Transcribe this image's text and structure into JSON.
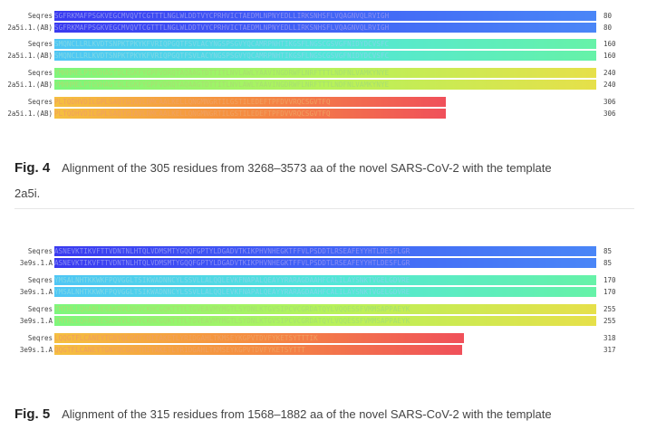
{
  "fig4": {
    "rows": [
      {
        "label": "Seqres",
        "seq": "SGFRKMAFPSGKVEGCMVQVTCGTTTLNGLWLDDTVYCPRHVICTAEDMLNPNYEDLLIRKSNHSFLVQAGNVQLRVIGH",
        "num": "80",
        "gradient": "linear-gradient(90deg,#3a3af0 0%,#3f5cf5 40%,#4a86f7 100%)",
        "color": "#8a8ff5"
      },
      {
        "label": "2a5i.1.(AB)",
        "seq": "SGFRKMAFPSGKVEGCMVQVTCGTTTLNGLWLDDTVYCPRHVICTAEDMLNPNYEDLLIRKSNHSFLVQAGNVQLRVIGH",
        "num": "80",
        "gradient": "linear-gradient(90deg,#3a3af0 0%,#3f5cf5 40%,#4a86f7 100%)",
        "color": "#8a8ff5"
      },
      {
        "label": "Seqres",
        "seq": "SMQNCLLRLKVDTSNPKTPKYKFVRIQPGQTFSVLACYNGSPSGVYQCAMRPNHTIKGSFLNGSCGSVGFNIDYDCVSFC",
        "num": "160",
        "gradient": "linear-gradient(90deg,#4fc6f5 0%,#52e6d8 50%,#66f2a8 100%)",
        "color": "#7fd8e8"
      },
      {
        "label": "2a5i.1.(AB)",
        "seq": "SMQNCLLRLKVDTSNPKTPKYKFVRIQPGQTFSVLACYNGSPSGVYQCAMRPNHTIKGSFLNGSCGSVGFNIDYDCVSFC",
        "num": "160",
        "gradient": "linear-gradient(90deg,#4fc6f5 0%,#52e6d8 50%,#66f2a8 100%)",
        "color": "#7fd8e8"
      },
      {
        "label": "Seqres",
        "seq": "YMHHMELPTGVHAGTDLEGKFYGPFVDRQTAQAAGTDTTITLNVLAWLYAAVINGDRWFLNRFTTTLNDFNLVAMKYNYE",
        "num": "240",
        "gradient": "linear-gradient(90deg,#7cf77c 0%,#b6f25a 50%,#e6e04a 100%)",
        "color": "#a8e070"
      },
      {
        "label": "2a5i.1.(AB)",
        "seq": "YMHHMELPTGVHAGTDLEGKFYGPFVDRQTAQAAGTDTTITLNVLAWLYAAVINGDRWFLNRFTTTLNDFNLVAMKYNYE",
        "num": "240",
        "gradient": "linear-gradient(90deg,#7cf77c 0%,#b6f25a 50%,#e6e04a 100%)",
        "color": "#a8e070"
      },
      {
        "label": "Seqres",
        "seq": "PLTQDHVDILGPLSAQTGIAVLDMCAALKELLQNGMNGRTILGSTILEDEFTPFDVVRQCSGVTFQ",
        "num": "306",
        "gradient": "linear-gradient(90deg,#f5c040 0%,#f59040 45%,#f0505a 100%)",
        "color": "#f0a060"
      },
      {
        "label": "2a5i.1.(AB)",
        "seq": "PLTQDHVDILGPLSAQTGIAVLDMCAALKELLQNGMNGRTILGSTILEDEFTPFDVVRQCSGVTFQ",
        "num": "306",
        "gradient": "linear-gradient(90deg,#f5c040 0%,#f59040 45%,#f0505a 100%)",
        "color": "#f0a060"
      }
    ],
    "caption_label": "Fig. 4",
    "caption_text": "Alignment of the 305 residues from 3268–3573 aa of the novel SARS-CoV-2 with the template",
    "caption_cont": "2a5i."
  },
  "fig5": {
    "rows": [
      {
        "label": "Seqres",
        "seq": "ASNEVKTIKVFTTVDNTNLHTQLVDMSMTYGQQFGPTYLDGADVTKIKPHVNHEGKTFFVLPSDDTLRSEAFEYYHTLDESFLGR",
        "num": "85",
        "gradient": "linear-gradient(90deg,#3a3af0 0%,#3f5cf5 40%,#4a86f7 100%)",
        "color": "#8a8ff5"
      },
      {
        "label": "3e9s.1.A",
        "seq": "ASNEVKTIKVFTTVDNTNLHTQLVDMSMTYGQQFGPTYLDGADVTKIKPHVNHEGKTFFVLPSDDTLRSEAFEYYHTLDESFLGR",
        "num": "85",
        "gradient": "linear-gradient(90deg,#3a3af0 0%,#3f5cf5 40%,#4a86f7 100%)",
        "color": "#8a8ff5"
      },
      {
        "label": "Seqres",
        "seq": "YMSALNHTKKWKFPQVGGLTSIKWADNNCYLSSVLLALQQLEVKFNAPALQEAYYRARAGDAAHFCALILAYSNKTVGELGDVRE",
        "num": "170",
        "gradient": "linear-gradient(90deg,#4fc6f5 0%,#52e6d8 50%,#66f2a8 100%)",
        "color": "#7fd8e8"
      },
      {
        "label": "3e9s.1.A",
        "seq": "YMSALNHTKKWKFPQVGGLTSIKWADNNCYLSSVLLALQQLEVKFNAPALQEAYYRARAGDAAHFCALILAYSNKTVGELGDVRE",
        "num": "170",
        "gradient": "linear-gradient(90deg,#4fc6f5 0%,#52e6d8 50%,#66f2a8 100%)",
        "color": "#7fd8e8"
      },
      {
        "label": "Seqres",
        "seq": "TMTHLLQHANLESAKRVLNVVCKHCGQKTTTLTGVEAVMYMGTLSYDNLKTGVSIPCVCGRDATQYLVQQESSFVMMSAPPAEYK",
        "num": "255",
        "gradient": "linear-gradient(90deg,#7cf77c 0%,#b6f25a 50%,#e6e04a 100%)",
        "color": "#a8e070"
      },
      {
        "label": "3e9s.1.A",
        "seq": "TMTHLLQHANLESAKRVLNVVCKHCGQKTTTLTGVEAVMYMGTLSYDNLKTGVSIPCVCGRDATQYLVQQESSFVMMSAPPAEYK",
        "num": "255",
        "gradient": "linear-gradient(90deg,#7cf77c 0%,#b6f25a 50%,#e6e04a 100%)",
        "color": "#a8e070"
      },
      {
        "label": "Seqres",
        "seq": "LQQGTFLCANEYTGNYQCGHYTHITAKETLYRIDGAHLTKMSEYKGPVTDVFYKETSYTTTIK",
        "num": "318",
        "gradient": "linear-gradient(90deg,#f5c040 0%,#f59040 45%,#f0505a 100%)",
        "color": "#f0a060"
      },
      {
        "label": "3e9s.1.A",
        "seq": "QQGTFLCANEYTGNYQCGHYTHITAKETLYRIDGAHLTKMSEYKGPVTDVFYKETSYTTT",
        "num": "317",
        "gradient": "linear-gradient(90deg,#f5c040 0%,#f59040 45%,#f0505a 100%)",
        "color": "#f0a060"
      }
    ],
    "caption_label": "Fig. 5",
    "caption_text": "Alignment of the 315 residues from 1568–1882 aa of the novel SARS-CoV-2 with the template"
  }
}
